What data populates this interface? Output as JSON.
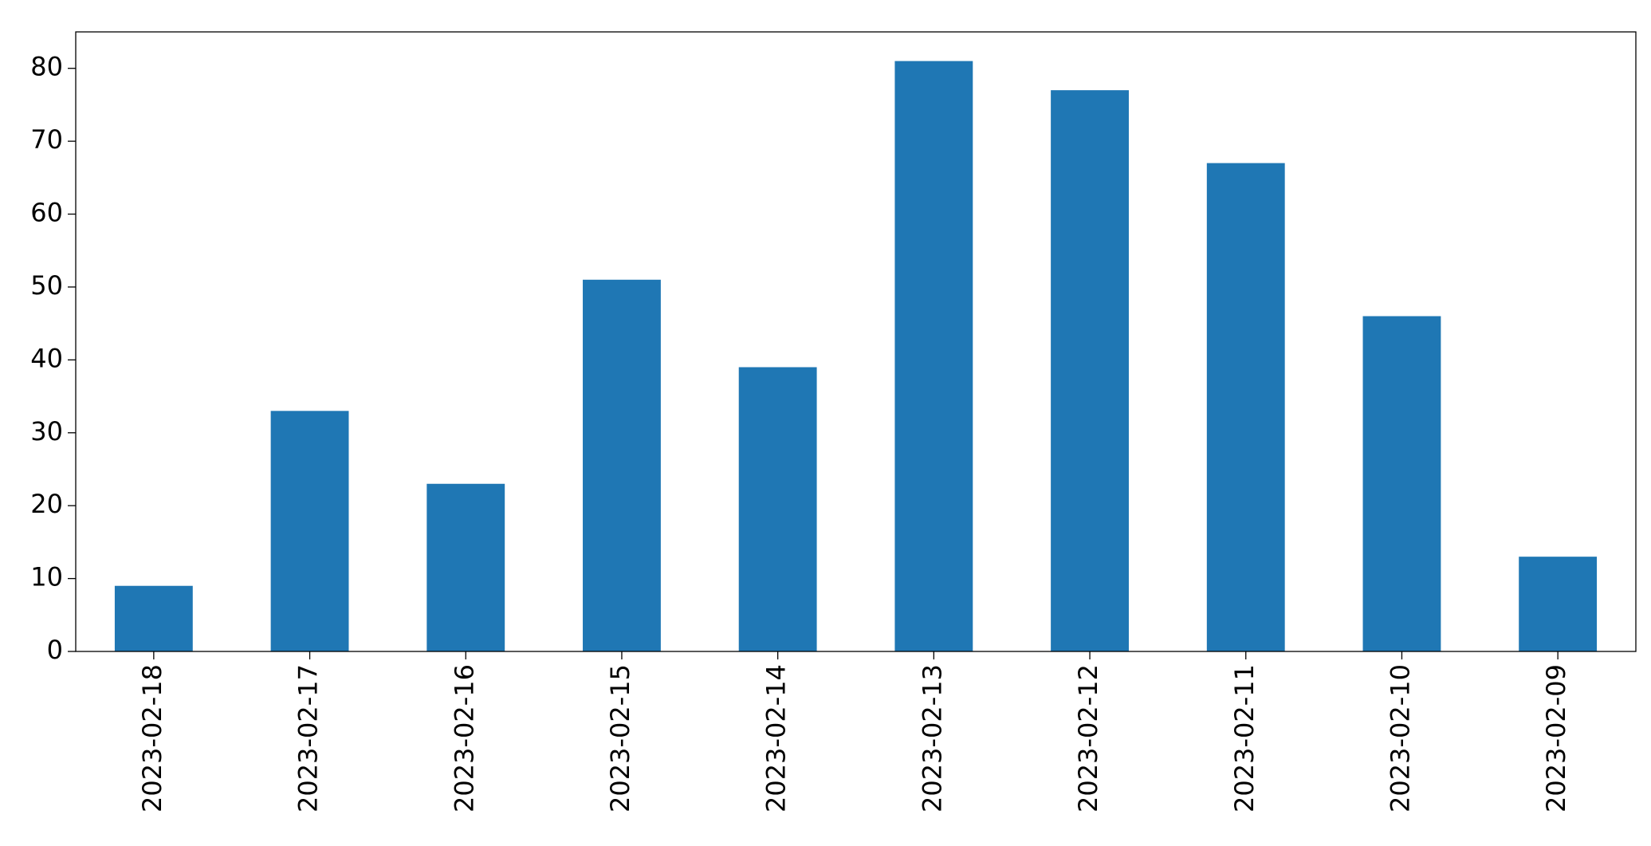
{
  "chart_data": {
    "type": "bar",
    "categories": [
      "2023-02-18",
      "2023-02-17",
      "2023-02-16",
      "2023-02-15",
      "2023-02-14",
      "2023-02-13",
      "2023-02-12",
      "2023-02-11",
      "2023-02-10",
      "2023-02-09"
    ],
    "values": [
      9,
      33,
      23,
      51,
      39,
      81,
      77,
      67,
      46,
      13
    ],
    "color": "#1f77b4",
    "ylim": [
      0,
      85
    ],
    "yticks": [
      0,
      10,
      20,
      30,
      40,
      50,
      60,
      70,
      80
    ],
    "grid": false
  }
}
